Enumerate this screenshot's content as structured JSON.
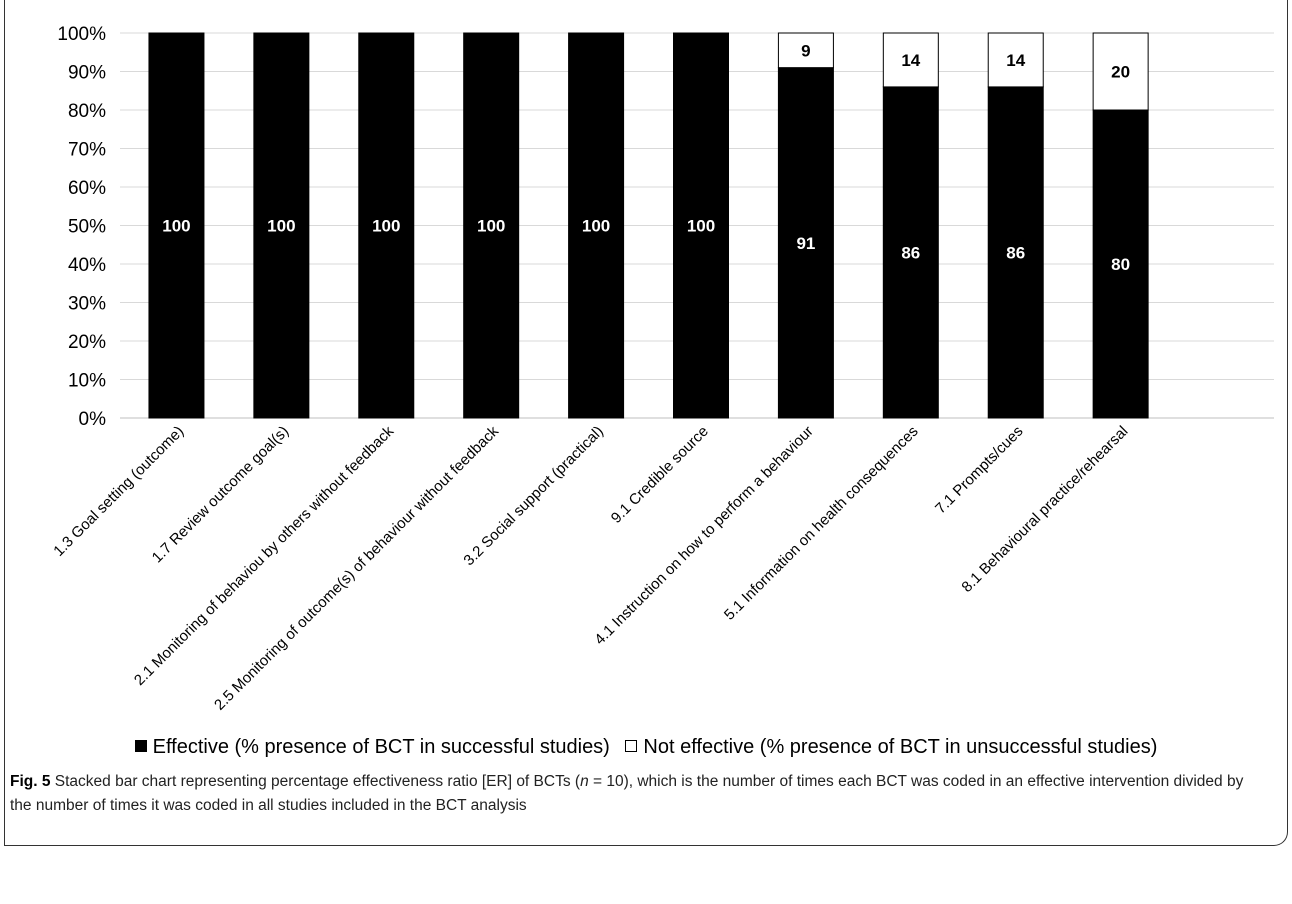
{
  "chart_data": {
    "type": "bar",
    "stacked": true,
    "categories": [
      "1.3 Goal setting (outcome)",
      "1.7 Review outcome goal(s)",
      "2.1 Monitoring of behaviou by others without feedback",
      "2.5 Monitoring of outcome(s) of behaviour without feedback",
      "3.2 Social support (practical)",
      "9.1 Credible source",
      "4.1 Instruction on how to perform a behaviour",
      "5.1 Information on health consequences",
      "7.1 Prompts/cues",
      "8.1 Behavioural practice/rehearsal"
    ],
    "series": [
      {
        "name": "Effective (% presence of BCT in successful studies)",
        "values": [
          100,
          100,
          100,
          100,
          100,
          100,
          91,
          86,
          86,
          80
        ],
        "color": "#000000"
      },
      {
        "name": "Not effective (% presence of BCT in unsuccessful studies)",
        "values": [
          0,
          0,
          0,
          0,
          0,
          0,
          9,
          14,
          14,
          20
        ],
        "color": "#ffffff"
      }
    ],
    "ylim": [
      0,
      100
    ],
    "yticks": [
      "0%",
      "10%",
      "20%",
      "30%",
      "40%",
      "50%",
      "60%",
      "70%",
      "80%",
      "90%",
      "100%"
    ],
    "grid": true,
    "legend": "bottom"
  },
  "caption": {
    "label": "Fig. 5",
    "text": " Stacked bar chart representing percentage effectiveness ratio [ER] of BCTs (",
    "n_symbol": "n",
    "text_after": " = 10), which is the number of times each BCT was coded in an effective intervention divided by the number of times it was coded in all studies included in the BCT analysis"
  }
}
